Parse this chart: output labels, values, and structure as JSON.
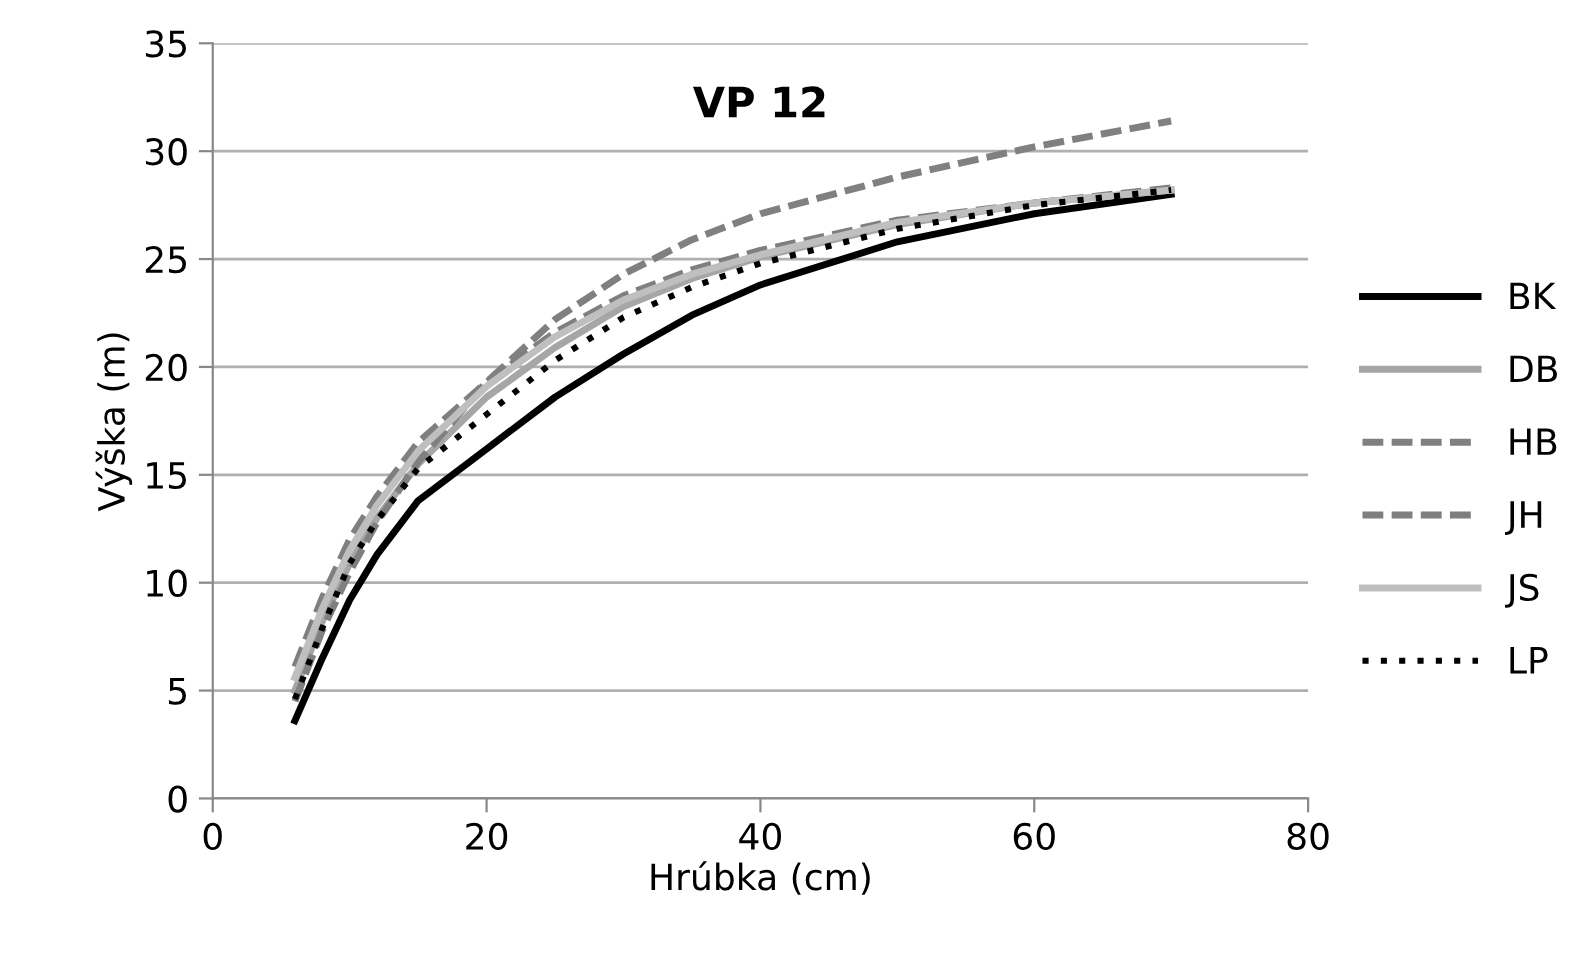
{
  "chart_data": {
    "type": "line",
    "title": "VP 12",
    "xlabel": "Hrúbka (cm)",
    "ylabel": "Výška (m)",
    "x": [
      6,
      8,
      10,
      12,
      15,
      20,
      25,
      30,
      35,
      40,
      50,
      60,
      70
    ],
    "xlim": [
      0,
      80
    ],
    "xticks": [
      0,
      20,
      40,
      60,
      80
    ],
    "ylim": [
      0,
      35
    ],
    "yticks": [
      0,
      5,
      10,
      15,
      20,
      25,
      30,
      35
    ],
    "grid": "y",
    "legend": "right",
    "marker": "none",
    "series": [
      {
        "name": "BK",
        "color": "#000000",
        "line_style": "solid",
        "values": [
          3.6,
          6.5,
          9.2,
          11.3,
          13.8,
          16.2,
          18.6,
          20.6,
          22.4,
          23.8,
          25.8,
          27.1,
          28.0
        ]
      },
      {
        "name": "DB",
        "color": "#a6a6a6",
        "line_style": "solid",
        "values": [
          5.0,
          8.2,
          10.9,
          13.0,
          15.5,
          18.6,
          20.9,
          22.8,
          24.1,
          25.1,
          26.6,
          27.6,
          28.2
        ]
      },
      {
        "name": "HB",
        "color": "#808080",
        "line_style": "dashed",
        "values": [
          4.5,
          7.8,
          10.5,
          12.8,
          15.6,
          19.3,
          22.2,
          24.3,
          25.9,
          27.1,
          28.8,
          30.2,
          31.4
        ]
      },
      {
        "name": "JH",
        "color": "#7f7f7f",
        "line_style": "dashed",
        "values": [
          6.1,
          9.3,
          12.0,
          14.0,
          16.5,
          19.3,
          21.6,
          23.3,
          24.5,
          25.4,
          26.8,
          27.6,
          28.3
        ]
      },
      {
        "name": "JS",
        "color": "#bfbfbf",
        "line_style": "solid",
        "values": [
          5.6,
          8.8,
          11.5,
          13.6,
          16.1,
          19.1,
          21.4,
          23.1,
          24.3,
          25.2,
          26.7,
          27.6,
          28.2
        ]
      },
      {
        "name": "LP",
        "color": "#000000",
        "line_style": "dotted",
        "values": [
          4.6,
          7.9,
          10.9,
          12.9,
          15.3,
          17.8,
          20.3,
          22.3,
          23.7,
          24.8,
          26.4,
          27.5,
          28.2
        ]
      }
    ]
  }
}
